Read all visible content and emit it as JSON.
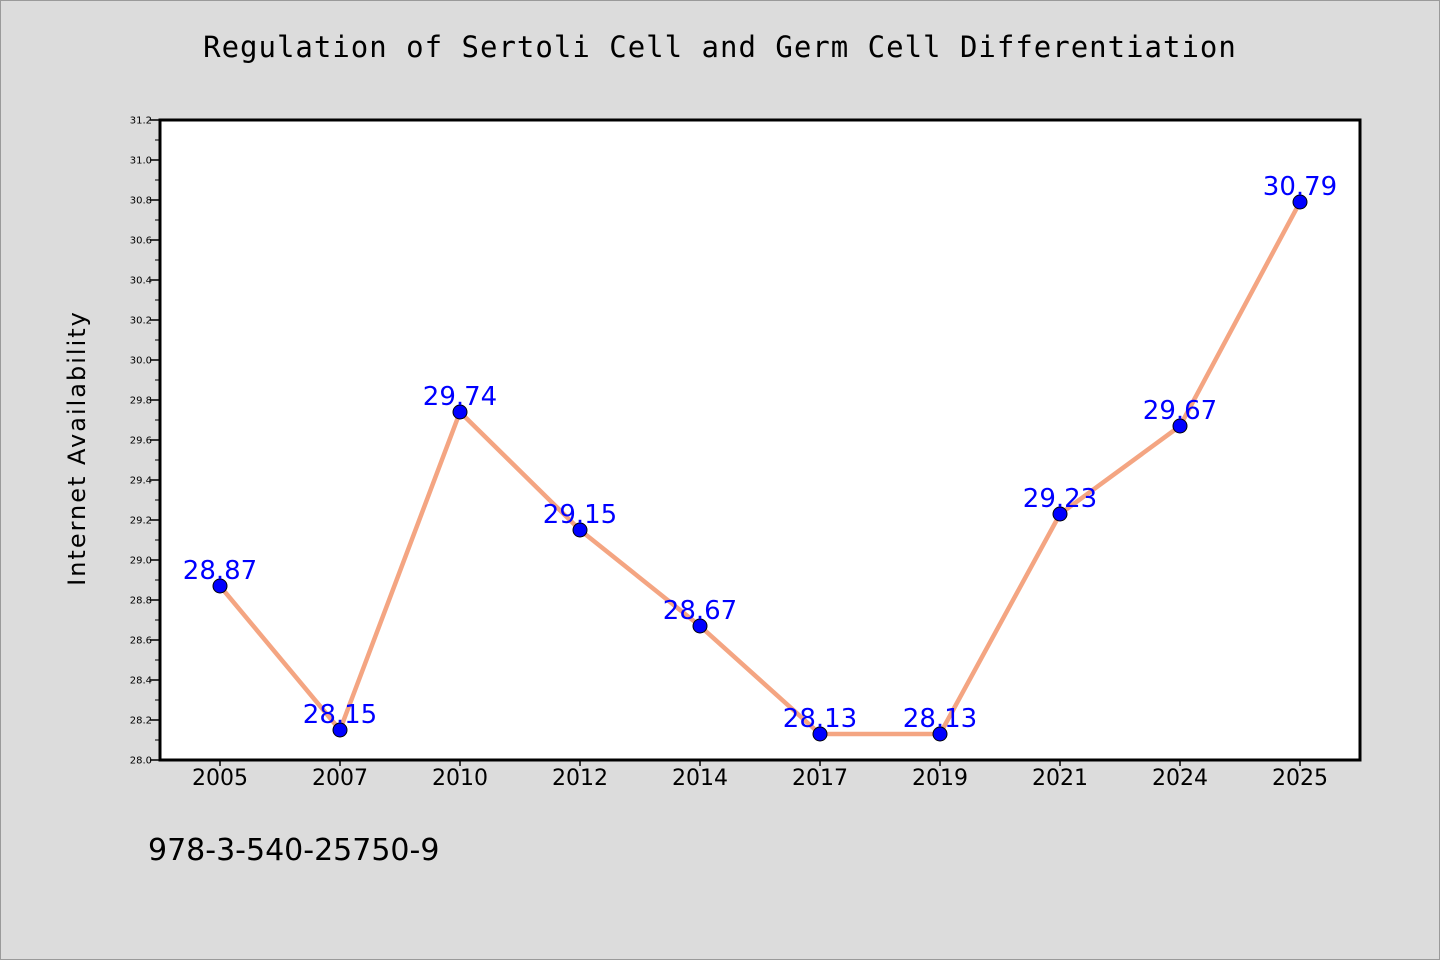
{
  "chart_data": {
    "type": "line",
    "title": "Regulation of Sertoli Cell and Germ Cell Differentiation",
    "xlabel": "",
    "ylabel": "Internet Availability",
    "categories": [
      "2005",
      "2007",
      "2010",
      "2012",
      "2014",
      "2017",
      "2019",
      "2021",
      "2024",
      "2025"
    ],
    "series": [
      {
        "values": [
          28.87,
          28.15,
          29.74,
          29.15,
          28.67,
          28.13,
          28.13,
          29.23,
          29.67,
          30.79
        ],
        "labels": [
          "28.87",
          "28.15",
          "29.74",
          "29.15",
          "28.67",
          "28.13",
          "28.13",
          "29.23",
          "29.67",
          "30.79"
        ]
      }
    ],
    "ylim": [
      28.0,
      31.2
    ],
    "yticks": [
      "28.0",
      "28.2",
      "28.4",
      "28.6",
      "28.8",
      "29.0",
      "29.2",
      "29.4",
      "29.6",
      "29.8",
      "30.0",
      "30.2",
      "30.4",
      "30.6",
      "30.8",
      "31.0",
      "31.2"
    ],
    "grid": false,
    "legend": "none",
    "colors": {
      "line": "#f4a582",
      "marker": "#0000ff",
      "data_label": "#0000ff",
      "background": "#dcdcdc",
      "plot_background": "#ffffff"
    }
  },
  "footer": {
    "isbn": "978-3-540-25750-9"
  }
}
